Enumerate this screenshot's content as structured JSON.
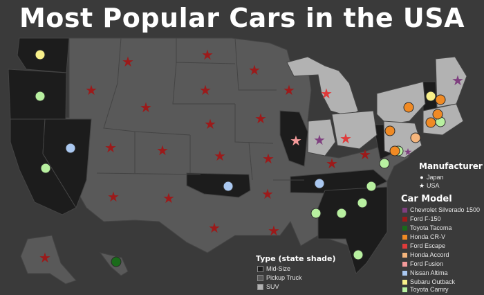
{
  "title": "Most Popular Cars in the USA",
  "colors": {
    "background": "#3a3a3a",
    "state_border": "#444444",
    "mid_size_shade": "#1c1c1c",
    "pickup_truck_shade": "#595959",
    "suv_shade": "#b2b2b2"
  },
  "manufacturer_legend": {
    "title": "Manufacturer",
    "items": [
      {
        "label": "Japan",
        "symbol": "circle"
      },
      {
        "label": "USA",
        "symbol": "star"
      }
    ]
  },
  "car_model_legend": {
    "title": "Car Model",
    "items": [
      {
        "label": "Chevrolet Silverado 1500",
        "color": "#7f3f7f"
      },
      {
        "label": "Ford F-150",
        "color": "#9c1a1a"
      },
      {
        "label": "Toyota Tacoma",
        "color": "#1a6b1a"
      },
      {
        "label": "Honda CR-V",
        "color": "#f08a24"
      },
      {
        "label": "Ford Escape",
        "color": "#e03a3a"
      },
      {
        "label": "Honda Accord",
        "color": "#f5b57c"
      },
      {
        "label": "Ford Fusion",
        "color": "#f49a9a"
      },
      {
        "label": "Nissan Altima",
        "color": "#aac8f0"
      },
      {
        "label": "Subaru Outback",
        "color": "#f8f08a"
      },
      {
        "label": "Toyota Camry",
        "color": "#b8f0a0"
      }
    ]
  },
  "type_legend": {
    "title": "Type (state shade)",
    "items": [
      {
        "label": "Mid-Size",
        "color": "#1c1c1c"
      },
      {
        "label": "Pickup Truck",
        "color": "#595959"
      },
      {
        "label": "SUV",
        "color": "#b2b2b2"
      }
    ]
  }
}
